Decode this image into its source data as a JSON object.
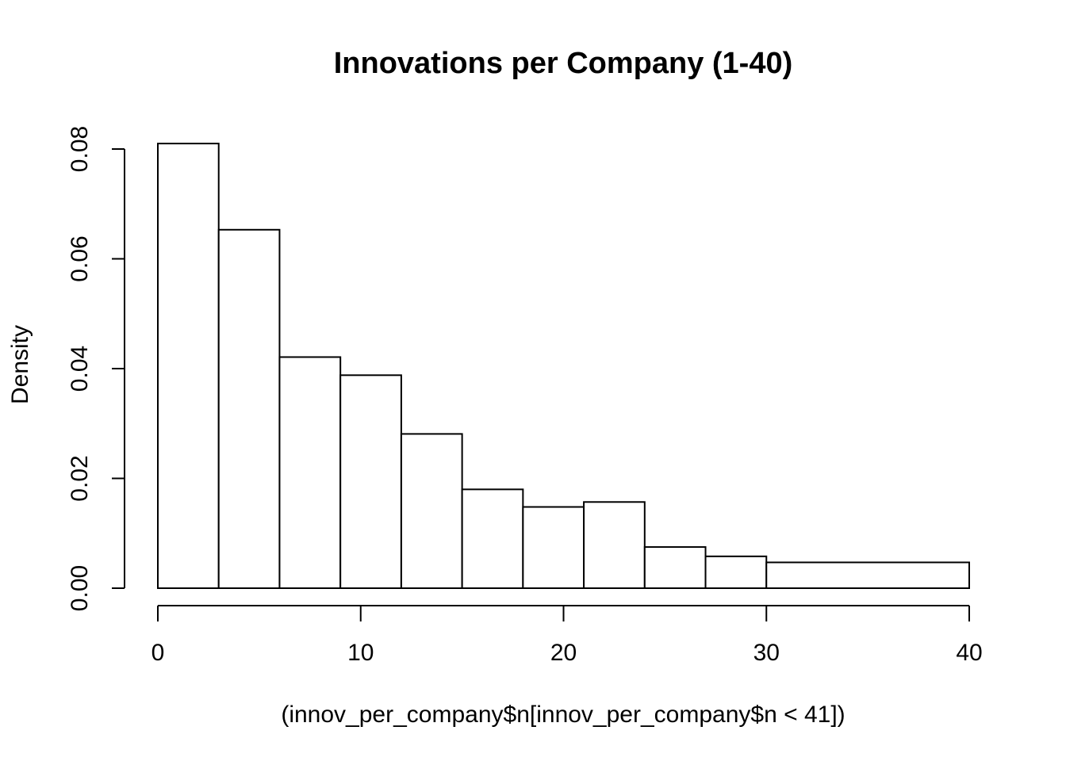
{
  "chart_data": {
    "type": "bar",
    "title": "Innovations per Company (1-40)",
    "xlabel": "(innov_per_company$n[innov_per_company$n < 41])",
    "ylabel": "Density",
    "bins": [
      {
        "x0": 0,
        "x1": 3,
        "density": 0.081
      },
      {
        "x0": 3,
        "x1": 6,
        "density": 0.0653
      },
      {
        "x0": 6,
        "x1": 9,
        "density": 0.0421
      },
      {
        "x0": 9,
        "x1": 12,
        "density": 0.0388
      },
      {
        "x0": 12,
        "x1": 15,
        "density": 0.0281
      },
      {
        "x0": 15,
        "x1": 18,
        "density": 0.018
      },
      {
        "x0": 18,
        "x1": 21,
        "density": 0.0148
      },
      {
        "x0": 21,
        "x1": 24,
        "density": 0.0157
      },
      {
        "x0": 24,
        "x1": 27,
        "density": 0.0075
      },
      {
        "x0": 27,
        "x1": 30,
        "density": 0.0058
      },
      {
        "x0": 30,
        "x1": 40,
        "density": 0.0047
      }
    ],
    "xlim": [
      0,
      40
    ],
    "ylim": [
      0,
      0.08
    ],
    "x_ticks": [
      0,
      10,
      20,
      30,
      40
    ],
    "x_tick_labels": [
      "0",
      "10",
      "20",
      "30",
      "40"
    ],
    "y_ticks": [
      0,
      0.02,
      0.04,
      0.06,
      0.08
    ],
    "y_tick_labels": [
      "0.00",
      "0.02",
      "0.04",
      "0.06",
      "0.08"
    ],
    "grid": false,
    "colors": {
      "bar_fill": "#ffffff",
      "bar_stroke": "#000000"
    }
  }
}
